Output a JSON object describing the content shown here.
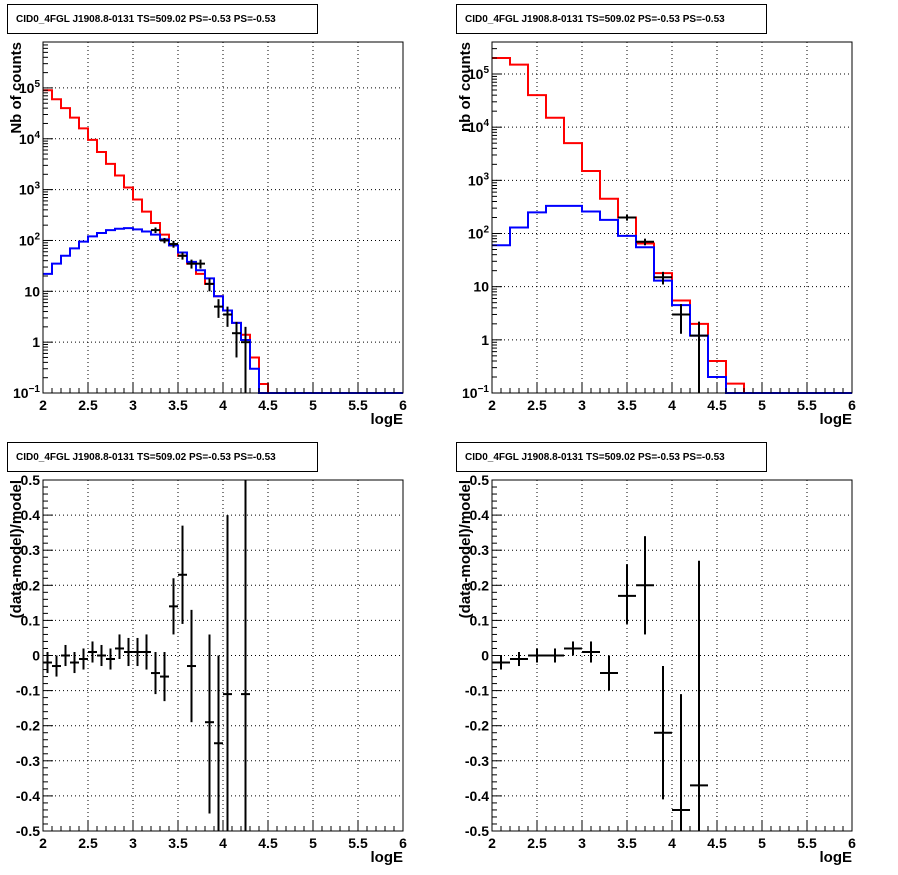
{
  "chart_data": [
    {
      "type": "line",
      "title": "CID0_4FGL J1908.8-0131 TS=509.02 PS=-0.53 PS=-0.53",
      "xlabel": "logE",
      "ylabel": "Nb of counts",
      "yscale": "log",
      "xlim": [
        2,
        6
      ],
      "ylim": [
        0.1,
        800000
      ],
      "grid": true,
      "xticks": [
        "2",
        "2.5",
        "3",
        "3.5",
        "4",
        "4.5",
        "5",
        "5.5",
        "6"
      ],
      "yticks": [
        {
          "v": 0.1,
          "m": "10",
          "e": "−1"
        },
        {
          "v": 1,
          "m": "1",
          "e": ""
        },
        {
          "v": 10,
          "m": "10",
          "e": ""
        },
        {
          "v": 100,
          "m": "10",
          "e": "2"
        },
        {
          "v": 1000,
          "m": "10",
          "e": "3"
        },
        {
          "v": 10000,
          "m": "10",
          "e": "4"
        },
        {
          "v": 100000,
          "m": "10",
          "e": "5"
        }
      ],
      "bin_edges": [
        2.0,
        2.1,
        2.2,
        2.3,
        2.4,
        2.5,
        2.6,
        2.7,
        2.8,
        2.9,
        3.0,
        3.1,
        3.2,
        3.3,
        3.4,
        3.5,
        3.6,
        3.7,
        3.8,
        3.9,
        4.0,
        4.1,
        4.2,
        4.3,
        4.4,
        4.5,
        4.6,
        4.7,
        4.8,
        4.9,
        5.0,
        5.1,
        5.2,
        5.3,
        5.4,
        5.5,
        5.6,
        5.7,
        5.8,
        5.9,
        6.0
      ],
      "series": [
        {
          "color": "#ff0000",
          "step": true,
          "values": [
            90000,
            60000,
            40000,
            26000,
            16000,
            9500,
            5500,
            3200,
            1900,
            1100,
            640,
            370,
            220,
            130,
            80,
            50,
            35,
            22,
            14,
            8,
            4.2,
            2.4,
            1.4,
            0.5,
            0.15,
            0.1,
            0.1,
            0.1,
            0.1,
            0.1,
            0.1,
            0.1,
            0.1,
            0.1,
            0.1,
            0.1,
            0.1,
            0.1,
            0.1,
            0.1
          ]
        },
        {
          "color": "#0000ff",
          "step": true,
          "values": [
            22,
            35,
            50,
            70,
            95,
            120,
            140,
            160,
            170,
            175,
            165,
            150,
            130,
            105,
            80,
            58,
            38,
            26,
            18,
            8,
            4.2,
            2.4,
            1.1,
            0.3,
            0.1,
            0.1,
            0.1,
            0.1,
            0.1,
            0.1,
            0.1,
            0.1,
            0.1,
            0.1,
            0.1,
            0.1,
            0.1,
            0.1,
            0.1,
            0.1
          ]
        },
        {
          "color": "#000000",
          "points": true,
          "xerr": 0.05,
          "x": [
            3.25,
            3.35,
            3.45,
            3.55,
            3.65,
            3.75,
            3.85,
            3.95,
            4.05,
            4.15,
            4.25
          ],
          "y": [
            160,
            100,
            85,
            50,
            35,
            35,
            14,
            5,
            3.5,
            1.5,
            1.0
          ],
          "ylo": [
            140,
            88,
            72,
            42,
            28,
            28,
            10,
            3,
            2,
            0.5,
            0.1
          ],
          "yhi": [
            180,
            112,
            98,
            58,
            42,
            42,
            18,
            7,
            5,
            2.5,
            2
          ]
        }
      ]
    },
    {
      "type": "line",
      "title": "CID0_4FGL J1908.8-0131 TS=509.02 PS=-0.53 PS=-0.53",
      "xlabel": "logE",
      "ylabel": "nb of counts",
      "yscale": "log",
      "xlim": [
        2,
        6
      ],
      "ylim": [
        0.1,
        400000
      ],
      "grid": true,
      "xticks": [
        "2",
        "2.5",
        "3",
        "3.5",
        "4",
        "4.5",
        "5",
        "5.5",
        "6"
      ],
      "yticks": [
        {
          "v": 0.1,
          "m": "10",
          "e": "−1"
        },
        {
          "v": 1,
          "m": "1",
          "e": ""
        },
        {
          "v": 10,
          "m": "10",
          "e": ""
        },
        {
          "v": 100,
          "m": "10",
          "e": "2"
        },
        {
          "v": 1000,
          "m": "10",
          "e": "3"
        },
        {
          "v": 10000,
          "m": "10",
          "e": "4"
        },
        {
          "v": 100000,
          "m": "10",
          "e": "5"
        }
      ],
      "bin_edges": [
        2.0,
        2.2,
        2.4,
        2.6,
        2.8,
        3.0,
        3.2,
        3.4,
        3.6,
        3.8,
        4.0,
        4.2,
        4.4,
        4.6,
        4.8,
        5.0,
        5.2,
        5.4,
        5.6,
        5.8,
        6.0
      ],
      "series": [
        {
          "color": "#ff0000",
          "step": true,
          "values": [
            200000,
            150000,
            40000,
            15000,
            5000,
            1500,
            450,
            200,
            65,
            18,
            5.5,
            2,
            0.4,
            0.15,
            0.1,
            0.1,
            0.1,
            0.1,
            0.1,
            0.1
          ]
        },
        {
          "color": "#0000ff",
          "step": true,
          "values": [
            60,
            130,
            250,
            330,
            330,
            260,
            180,
            90,
            55,
            13,
            4.5,
            1.2,
            0.2,
            0.1,
            0.1,
            0.1,
            0.1,
            0.1,
            0.1,
            0.1
          ]
        },
        {
          "color": "#000000",
          "points": true,
          "xerr": 0.1,
          "x": [
            3.5,
            3.7,
            3.9,
            4.1,
            4.3
          ],
          "y": [
            200,
            70,
            15,
            3,
            1.2
          ],
          "ylo": [
            175,
            60,
            11,
            1.3,
            0.1
          ],
          "yhi": [
            225,
            80,
            19,
            4.7,
            2.2
          ]
        }
      ]
    },
    {
      "type": "scatter",
      "title": "CID0_4FGL J1908.8-0131 TS=509.02 PS=-0.53 PS=-0.53",
      "xlabel": "logE",
      "ylabel": "(data-model)/model",
      "xlim": [
        2,
        6
      ],
      "ylim": [
        -0.5,
        0.5
      ],
      "grid": true,
      "xticks": [
        "2",
        "2.5",
        "3",
        "3.5",
        "4",
        "4.5",
        "5",
        "5.5",
        "6"
      ],
      "yticks": [
        "-0.5",
        "-0.4",
        "-0.3",
        "-0.2",
        "-0.1",
        "0",
        "0.1",
        "0.2",
        "0.3",
        "0.4",
        "0.5"
      ],
      "xerr": 0.05,
      "x": [
        2.05,
        2.15,
        2.25,
        2.35,
        2.45,
        2.55,
        2.65,
        2.75,
        2.85,
        2.95,
        3.05,
        3.15,
        3.25,
        3.35,
        3.45,
        3.55,
        3.65,
        3.85,
        3.95,
        4.05,
        4.25
      ],
      "y": [
        -0.02,
        -0.03,
        0.0,
        -0.02,
        -0.01,
        0.01,
        0.0,
        -0.01,
        0.02,
        0.01,
        0.01,
        0.01,
        -0.05,
        -0.06,
        0.14,
        0.23,
        -0.03,
        -0.19,
        -0.25,
        -0.11,
        -0.11
      ],
      "ylo": [
        -0.05,
        -0.06,
        -0.03,
        -0.05,
        -0.04,
        -0.02,
        -0.03,
        -0.04,
        -0.01,
        -0.03,
        -0.03,
        -0.04,
        -0.11,
        -0.13,
        0.06,
        0.09,
        -0.19,
        -0.45,
        -0.5,
        -0.5,
        -0.5
      ],
      "yhi": [
        0.01,
        0.0,
        0.03,
        0.01,
        0.02,
        0.04,
        0.03,
        0.02,
        0.06,
        0.05,
        0.05,
        0.06,
        0.01,
        0.01,
        0.22,
        0.37,
        0.13,
        0.06,
        0.0,
        0.4,
        0.5
      ]
    },
    {
      "type": "scatter",
      "title": "CID0_4FGL J1908.8-0131 TS=509.02 PS=-0.53 PS=-0.53",
      "xlabel": "logE",
      "ylabel": "(data-model)/model",
      "xlim": [
        2,
        6
      ],
      "ylim": [
        -0.5,
        0.5
      ],
      "grid": true,
      "xticks": [
        "2",
        "2.5",
        "3",
        "3.5",
        "4",
        "4.5",
        "5",
        "5.5",
        "6"
      ],
      "yticks": [
        "-0.5",
        "-0.4",
        "-0.3",
        "-0.2",
        "-0.1",
        "0",
        "0.1",
        "0.2",
        "0.3",
        "0.4",
        "0.5"
      ],
      "xerr": 0.1,
      "x": [
        2.1,
        2.3,
        2.5,
        2.7,
        2.9,
        3.1,
        3.3,
        3.5,
        3.7,
        3.9,
        4.1,
        4.3
      ],
      "y": [
        -0.02,
        -0.01,
        0.0,
        0.0,
        0.02,
        0.01,
        -0.05,
        0.17,
        0.2,
        -0.22,
        -0.44,
        -0.37
      ],
      "ylo": [
        -0.04,
        -0.03,
        -0.02,
        -0.02,
        0.0,
        -0.02,
        -0.1,
        0.09,
        0.06,
        -0.41,
        -0.5,
        -0.5
      ],
      "yhi": [
        0.0,
        0.01,
        0.02,
        0.02,
        0.04,
        0.04,
        0.0,
        0.26,
        0.34,
        -0.03,
        -0.11,
        0.27
      ]
    }
  ]
}
